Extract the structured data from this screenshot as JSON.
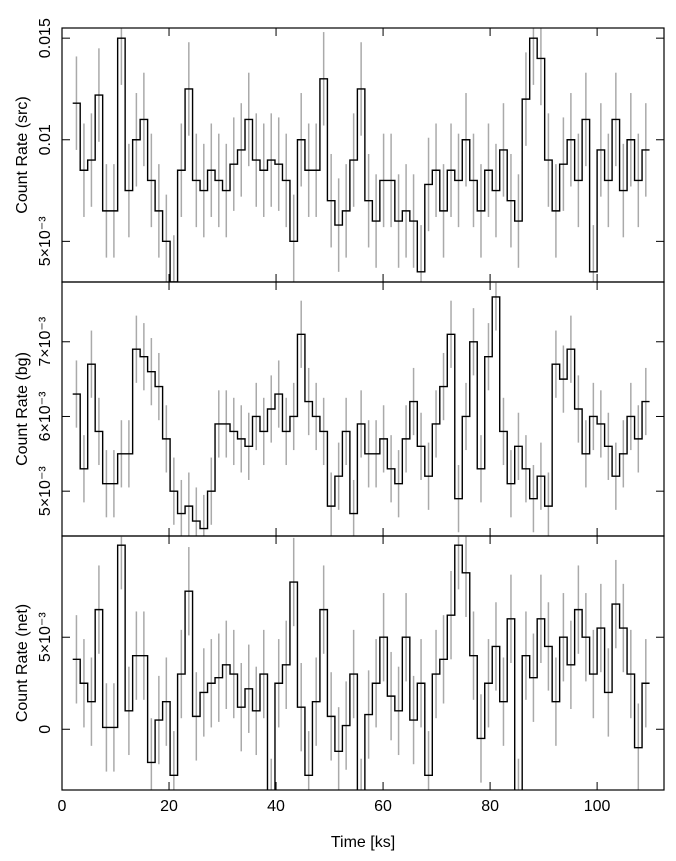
{
  "chart_data": [
    {
      "type": "step",
      "ylabel": "Count Rate (src)",
      "x": [
        2.7,
        4.1,
        5.5,
        6.9,
        8.3,
        9.7,
        11.1,
        12.5,
        13.9,
        15.3,
        16.7,
        18.1,
        19.5,
        20.9,
        22.3,
        23.7,
        25.1,
        26.5,
        27.9,
        29.3,
        30.7,
        32.1,
        33.5,
        34.9,
        36.3,
        37.7,
        39.1,
        40.5,
        41.9,
        43.3,
        44.7,
        46.1,
        47.5,
        48.9,
        50.3,
        51.7,
        53.1,
        54.5,
        55.9,
        57.3,
        58.7,
        60.1,
        61.5,
        62.9,
        64.3,
        65.7,
        67.1,
        68.5,
        69.9,
        71.3,
        72.7,
        74.1,
        75.5,
        76.9,
        78.3,
        79.7,
        81.1,
        82.5,
        83.9,
        85.3,
        86.7,
        88.1,
        89.5,
        90.9,
        92.3,
        93.7,
        95.1,
        96.5,
        97.9,
        99.3,
        100.7,
        102.1,
        103.5,
        104.9,
        106.3,
        107.7,
        109.1
      ],
      "values": [
        0.0118,
        0.0085,
        0.009,
        0.0122,
        0.0065,
        0.0065,
        0.015,
        0.0075,
        0.01,
        0.011,
        0.008,
        0.0065,
        0.005,
        0.003,
        0.0085,
        0.0125,
        0.008,
        0.0075,
        0.0085,
        0.008,
        0.0075,
        0.0088,
        0.0095,
        0.011,
        0.009,
        0.0085,
        0.009,
        0.0088,
        0.008,
        0.005,
        0.01,
        0.0085,
        0.0085,
        0.013,
        0.007,
        0.0058,
        0.0065,
        0.009,
        0.0125,
        0.007,
        0.006,
        0.008,
        0.008,
        0.006,
        0.0065,
        0.006,
        0.0035,
        0.0078,
        0.0085,
        0.0065,
        0.0085,
        0.008,
        0.01,
        0.008,
        0.0065,
        0.0085,
        0.0075,
        0.0095,
        0.007,
        0.006,
        0.012,
        0.015,
        0.014,
        0.009,
        0.0065,
        0.0088,
        0.01,
        0.008,
        0.011,
        0.0035,
        0.0095,
        0.008,
        0.011,
        0.0075,
        0.01,
        0.008,
        0.0095
      ],
      "error": 0.0023,
      "xlim": [
        0,
        112.5
      ],
      "xticks": [
        0,
        20,
        40,
        60,
        80,
        100
      ],
      "ylim": [
        0.003,
        0.0155
      ],
      "yticks": [
        {
          "value": 0.005,
          "label": "5×10⁻³"
        },
        {
          "value": 0.01,
          "label": "0.01"
        },
        {
          "value": 0.015,
          "label": "0.015"
        }
      ]
    },
    {
      "type": "step",
      "ylabel": "Count Rate (bg)",
      "x": [
        2.7,
        4.1,
        5.5,
        6.9,
        8.3,
        9.7,
        11.1,
        12.5,
        13.9,
        15.3,
        16.7,
        18.1,
        19.5,
        20.9,
        22.3,
        23.7,
        25.1,
        26.5,
        27.9,
        29.3,
        30.7,
        32.1,
        33.5,
        34.9,
        36.3,
        37.7,
        39.1,
        40.5,
        41.9,
        43.3,
        44.7,
        46.1,
        47.5,
        48.9,
        50.3,
        51.7,
        53.1,
        54.5,
        55.9,
        57.3,
        58.7,
        60.1,
        61.5,
        62.9,
        64.3,
        65.7,
        67.1,
        68.5,
        69.9,
        71.3,
        72.7,
        74.1,
        75.5,
        76.9,
        78.3,
        79.7,
        81.1,
        82.5,
        83.9,
        85.3,
        86.7,
        88.1,
        89.5,
        90.9,
        92.3,
        93.7,
        95.1,
        96.5,
        97.9,
        99.3,
        100.7,
        102.1,
        103.5,
        104.9,
        106.3,
        107.7,
        109.1
      ],
      "values": [
        0.0063,
        0.0053,
        0.0067,
        0.0058,
        0.0051,
        0.0051,
        0.0055,
        0.0055,
        0.0069,
        0.0068,
        0.0066,
        0.0064,
        0.0057,
        0.005,
        0.0047,
        0.0048,
        0.0046,
        0.0045,
        0.005,
        0.0059,
        0.0059,
        0.0058,
        0.0057,
        0.0056,
        0.006,
        0.0058,
        0.0061,
        0.0063,
        0.0058,
        0.006,
        0.0071,
        0.0062,
        0.006,
        0.0058,
        0.0048,
        0.0052,
        0.0058,
        0.0047,
        0.0059,
        0.0055,
        0.0055,
        0.0057,
        0.0053,
        0.0051,
        0.0057,
        0.0062,
        0.0056,
        0.0052,
        0.0059,
        0.0064,
        0.0071,
        0.0049,
        0.006,
        0.007,
        0.0053,
        0.0068,
        0.0076,
        0.0058,
        0.0051,
        0.0056,
        0.0053,
        0.0049,
        0.0052,
        0.0048,
        0.0067,
        0.0065,
        0.0069,
        0.0061,
        0.0055,
        0.006,
        0.0059,
        0.0056,
        0.0052,
        0.0055,
        0.006,
        0.0057,
        0.0062
      ],
      "error": 0.00045,
      "xlim": [
        0,
        112.5
      ],
      "xticks": [
        0,
        20,
        40,
        60,
        80,
        100
      ],
      "ylim": [
        0.0044,
        0.0078
      ],
      "yticks": [
        {
          "value": 0.005,
          "label": "5×10⁻³"
        },
        {
          "value": 0.006,
          "label": "6×10⁻³"
        },
        {
          "value": 0.007,
          "label": "7×10⁻³"
        }
      ]
    },
    {
      "type": "step",
      "ylabel": "Count Rate (net)",
      "xlabel": "Time [ks]",
      "x": [
        2.7,
        4.1,
        5.5,
        6.9,
        8.3,
        9.7,
        11.1,
        12.5,
        13.9,
        15.3,
        16.7,
        18.1,
        19.5,
        20.9,
        22.3,
        23.7,
        25.1,
        26.5,
        27.9,
        29.3,
        30.7,
        32.1,
        33.5,
        34.9,
        36.3,
        37.7,
        39.1,
        40.5,
        41.9,
        43.3,
        44.7,
        46.1,
        47.5,
        48.9,
        50.3,
        51.7,
        53.1,
        54.5,
        55.9,
        57.3,
        58.7,
        60.1,
        61.5,
        62.9,
        64.3,
        65.7,
        67.1,
        68.5,
        69.9,
        71.3,
        72.7,
        74.1,
        75.5,
        76.9,
        78.3,
        79.7,
        81.1,
        82.5,
        83.9,
        85.3,
        86.7,
        88.1,
        89.5,
        90.9,
        92.3,
        93.7,
        95.1,
        96.5,
        97.9,
        99.3,
        100.7,
        102.1,
        103.5,
        104.9,
        106.3,
        107.7,
        109.1
      ],
      "values": [
        0.0038,
        0.0025,
        0.0015,
        0.0065,
        0.0001,
        0.0001,
        0.01,
        0.001,
        0.004,
        0.004,
        -0.0018,
        0.0005,
        0.0015,
        -0.0025,
        0.003,
        0.0075,
        0.0007,
        0.002,
        0.0025,
        0.0028,
        0.0035,
        0.003,
        0.0012,
        0.0022,
        0.001,
        0.003,
        -0.004,
        0.0025,
        0.0035,
        0.008,
        0.0012,
        -0.0025,
        0.0015,
        0.0065,
        0.0007,
        -0.0012,
        0.0002,
        0.003,
        -0.004,
        0.0008,
        0.0025,
        0.005,
        0.0018,
        0.001,
        0.005,
        0.0005,
        0.0025,
        -0.0025,
        0.003,
        0.0038,
        0.0062,
        0.01,
        0.0085,
        0.004,
        -0.0005,
        0.0025,
        0.0045,
        0.0015,
        0.006,
        -0.004,
        0.004,
        0.0028,
        0.006,
        0.0045,
        0.0015,
        0.005,
        0.0035,
        0.0065,
        0.005,
        0.003,
        0.0055,
        0.002,
        0.0068,
        0.0055,
        0.003,
        -0.001,
        0.0025
      ],
      "error": 0.0024,
      "xlim": [
        0,
        112.5
      ],
      "xticks": [
        0,
        20,
        40,
        60,
        80,
        100
      ],
      "ylim": [
        -0.0033,
        0.0105
      ],
      "yticks": [
        0,
        {
          "value": 0.005,
          "label": "5×10⁻³"
        }
      ]
    }
  ]
}
